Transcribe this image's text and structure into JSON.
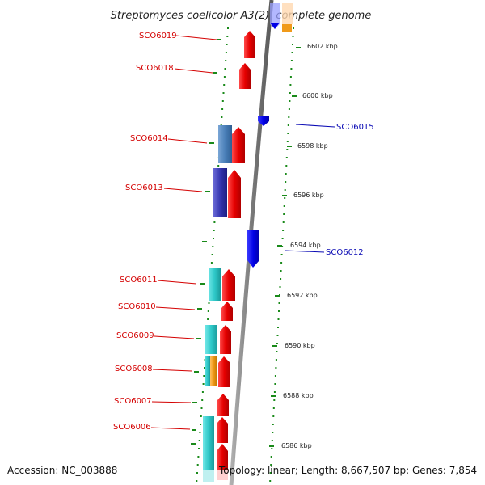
{
  "title": "Streptomyces coelicolor A3(2), complete genome",
  "footer": {
    "accession": "Accession: NC_003888",
    "topology": "Topology: linear; Length: 8,667,507 bp; Genes: 7,854"
  },
  "scale_labels": [
    "6602 kbp",
    "6600 kbp",
    "6598 kbp",
    "6596 kbp",
    "6594 kbp",
    "6592 kbp",
    "6590 kbp",
    "6588 kbp",
    "6586 kbp"
  ],
  "genes_left": [
    {
      "label": "SCO6019",
      "color": "#e60000"
    },
    {
      "label": "SCO6018",
      "color": "#e60000"
    },
    {
      "label": "SCO6014",
      "color": "#e60000"
    },
    {
      "label": "SCO6013",
      "color": "#e60000"
    },
    {
      "label": "SCO6011",
      "color": "#e60000"
    },
    {
      "label": "SCO6010",
      "color": "#e60000"
    },
    {
      "label": "SCO6009",
      "color": "#e60000"
    },
    {
      "label": "SCO6008",
      "color": "#e60000"
    },
    {
      "label": "SCO6007",
      "color": "#e60000"
    },
    {
      "label": "SCO6006",
      "color": "#e60000"
    }
  ],
  "genes_right": [
    {
      "label": "SCO6015",
      "color": "#0000e6"
    },
    {
      "label": "SCO6012",
      "color": "#0000e6"
    }
  ],
  "colors": {
    "forward_gene": "#e60000",
    "reverse_gene": "#0000e6",
    "tick_marks": "#1a8a1a",
    "backbone": "#808080",
    "cyan_feature": "#2ec8c8",
    "steelblue_feature": "#4a7fb8",
    "orange_feature": "#f09a1a",
    "label_line_red": "#d40000",
    "label_line_blue": "#0a0ab4"
  }
}
